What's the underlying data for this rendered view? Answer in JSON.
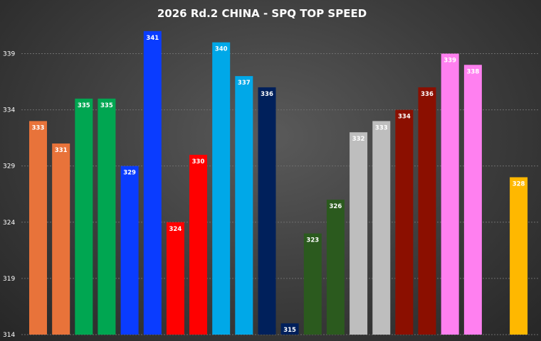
{
  "chart_data": {
    "type": "bar",
    "title": "2026 Rd.2 CHINA - SPQ TOP SPEED",
    "xlabel": "",
    "ylabel": "",
    "ylim": [
      314,
      342
    ],
    "yticks": [
      "314",
      "319",
      "324",
      "329",
      "334",
      "339"
    ],
    "grid": true,
    "legend": "none",
    "bars": [
      {
        "value": 333,
        "label": "333",
        "color": "#E8733A",
        "label_color": "#ffffff"
      },
      {
        "value": 331,
        "label": "331",
        "color": "#E8733A",
        "label_color": "#ffffff"
      },
      {
        "value": 335,
        "label": "335",
        "color": "#00A651",
        "label_color": "#ffffff"
      },
      {
        "value": 335,
        "label": "335",
        "color": "#00A651",
        "label_color": "#ffffff"
      },
      {
        "value": 329,
        "label": "329",
        "color": "#0A3CFF",
        "label_color": "#ffffff"
      },
      {
        "value": 341,
        "label": "341",
        "color": "#0A3CFF",
        "label_color": "#ffffff"
      },
      {
        "value": 324,
        "label": "324",
        "color": "#FF0000",
        "label_color": "#ffffff"
      },
      {
        "value": 330,
        "label": "330",
        "color": "#FF0000",
        "label_color": "#ffffff"
      },
      {
        "value": 340,
        "label": "340",
        "color": "#00A8E8",
        "label_color": "#ffffff"
      },
      {
        "value": 337,
        "label": "337",
        "color": "#00A8E8",
        "label_color": "#ffffff"
      },
      {
        "value": 336,
        "label": "336",
        "color": "#00205B",
        "label_color": "#ffffff"
      },
      {
        "value": 315,
        "label": "315",
        "color": "#00205B",
        "label_color": "#ffffff"
      },
      {
        "value": 323,
        "label": "323",
        "color": "#2B5A1E",
        "label_color": "#ffffff"
      },
      {
        "value": 326,
        "label": "326",
        "color": "#2B5A1E",
        "label_color": "#ffffff"
      },
      {
        "value": 332,
        "label": "332",
        "color": "#BEBEBE",
        "label_color": "#ffffff"
      },
      {
        "value": 333,
        "label": "333",
        "color": "#BEBEBE",
        "label_color": "#ffffff"
      },
      {
        "value": 334,
        "label": "334",
        "color": "#8B0F00",
        "label_color": "#ffffff"
      },
      {
        "value": 336,
        "label": "336",
        "color": "#8B0F00",
        "label_color": "#ffffff"
      },
      {
        "value": 339,
        "label": "339",
        "color": "#FF80F0",
        "label_color": "#ffffff"
      },
      {
        "value": 338,
        "label": "338",
        "color": "#FF80F0",
        "label_color": "#ffffff"
      },
      {
        "value": null,
        "label": "",
        "color": "#000000",
        "label_color": "#ffffff"
      },
      {
        "value": 328,
        "label": "328",
        "color": "#FFB800",
        "label_color": "#ffffff"
      }
    ]
  }
}
